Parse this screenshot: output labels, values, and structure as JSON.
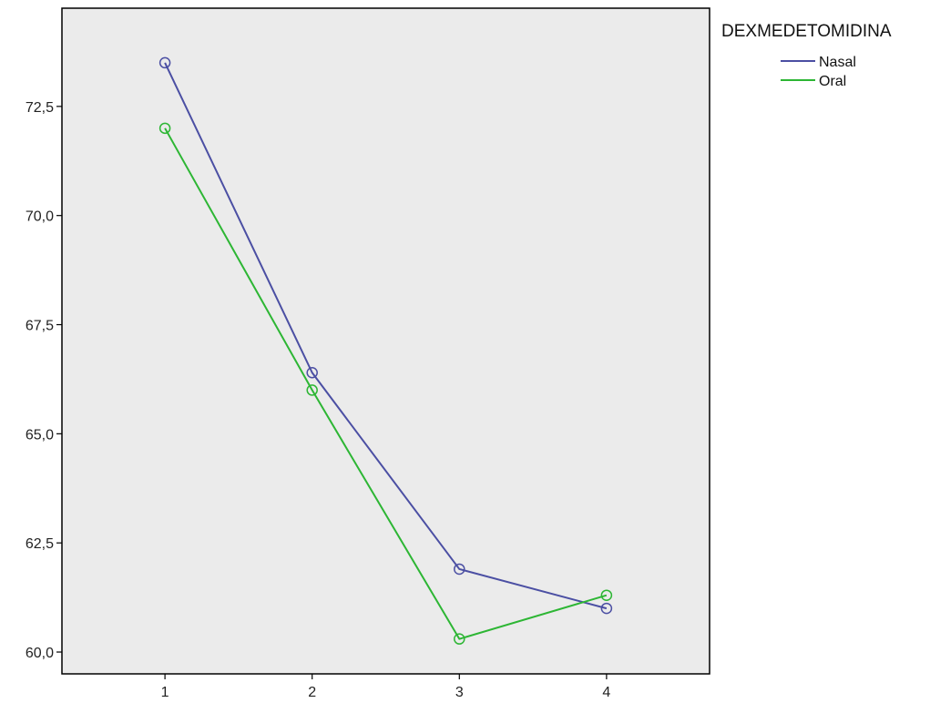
{
  "chart_data": {
    "type": "line",
    "title": "",
    "xlabel": "",
    "ylabel": "",
    "x": [
      1,
      2,
      3,
      4
    ],
    "x_tick_labels": [
      "1",
      "2",
      "3",
      "4"
    ],
    "y_ticks": [
      60.0,
      62.5,
      65.0,
      67.5,
      70.0,
      72.5
    ],
    "y_tick_labels": [
      "60,0",
      "62,5",
      "65,0",
      "67,5",
      "70,0",
      "72,5"
    ],
    "xlim": [
      0.3,
      4.7
    ],
    "ylim": [
      59.5,
      74.75
    ],
    "grid": false,
    "markers": "open-circle",
    "legend": {
      "title": "DEXMEDETOMIDINA",
      "placement": "outside-top-right"
    },
    "series": [
      {
        "name": "Nasal",
        "color": "#4b4fa3",
        "values": [
          73.5,
          66.4,
          61.9,
          61.0
        ]
      },
      {
        "name": "Oral",
        "color": "#2db634",
        "values": [
          72.0,
          66.0,
          60.3,
          61.3
        ]
      }
    ],
    "colors": {
      "plot_background": "#ebebeb",
      "axis": "#000000"
    }
  }
}
